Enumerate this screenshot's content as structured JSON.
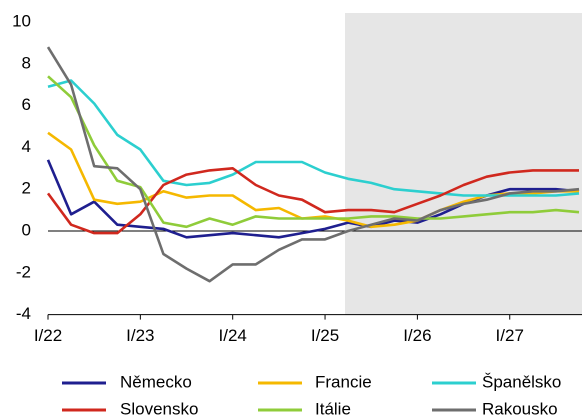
{
  "chart_data": {
    "type": "line",
    "categories": [
      "I/22",
      null,
      null,
      null,
      "I/23",
      null,
      null,
      null,
      "I/24",
      null,
      null,
      null,
      "I/25",
      null,
      null,
      null,
      "I/26",
      null,
      null,
      null,
      "I/27",
      null,
      null,
      null
    ],
    "series": [
      {
        "name": "Německo",
        "color": "#1f1f8f",
        "values": [
          3.4,
          0.8,
          1.4,
          0.3,
          0.2,
          0.1,
          -0.3,
          -0.2,
          -0.1,
          -0.2,
          -0.3,
          -0.1,
          0.1,
          0.4,
          0.2,
          0.5,
          0.4,
          0.8,
          1.3,
          1.7,
          2.0,
          2.0,
          2.0,
          1.9
        ]
      },
      {
        "name": "Francie",
        "color": "#f5b800",
        "values": [
          4.7,
          3.9,
          1.5,
          1.3,
          1.4,
          1.9,
          1.6,
          1.7,
          1.7,
          1.0,
          1.1,
          0.6,
          0.7,
          0.5,
          0.2,
          0.3,
          0.5,
          1.0,
          1.4,
          1.7,
          1.8,
          1.8,
          1.9,
          1.9
        ]
      },
      {
        "name": "Španělsko",
        "color": "#2ccfcf",
        "values": [
          6.9,
          7.2,
          6.1,
          4.6,
          3.9,
          2.4,
          2.2,
          2.3,
          2.7,
          3.3,
          3.3,
          3.3,
          2.8,
          2.5,
          2.3,
          2.0,
          1.9,
          1.8,
          1.7,
          1.7,
          1.7,
          1.7,
          1.7,
          1.8
        ]
      },
      {
        "name": "Slovensko",
        "color": "#d0281e",
        "values": [
          1.8,
          0.3,
          -0.1,
          -0.1,
          0.8,
          2.2,
          2.7,
          2.9,
          3.0,
          2.2,
          1.7,
          1.5,
          0.9,
          1.0,
          1.0,
          0.9,
          1.3,
          1.7,
          2.2,
          2.6,
          2.8,
          2.9,
          2.9,
          2.9
        ]
      },
      {
        "name": "Itálie",
        "color": "#8fcc3a",
        "values": [
          7.4,
          6.4,
          4.1,
          2.4,
          2.1,
          0.4,
          0.2,
          0.6,
          0.3,
          0.7,
          0.6,
          0.6,
          0.6,
          0.6,
          0.7,
          0.7,
          0.6,
          0.6,
          0.7,
          0.8,
          0.9,
          0.9,
          1.0,
          0.9
        ]
      },
      {
        "name": "Rakousko",
        "color": "#6e6e6e",
        "values": [
          8.8,
          7.0,
          3.1,
          3.0,
          2.0,
          -1.1,
          -1.8,
          -2.4,
          -1.6,
          -1.6,
          -0.9,
          -0.4,
          -0.4,
          0.0,
          0.3,
          0.6,
          0.5,
          1.0,
          1.3,
          1.5,
          1.8,
          1.9,
          1.9,
          2.0
        ]
      }
    ],
    "ylim": [
      -4,
      10
    ],
    "yticks": [
      -4,
      -2,
      0,
      2,
      4,
      6,
      8,
      10
    ]
  }
}
